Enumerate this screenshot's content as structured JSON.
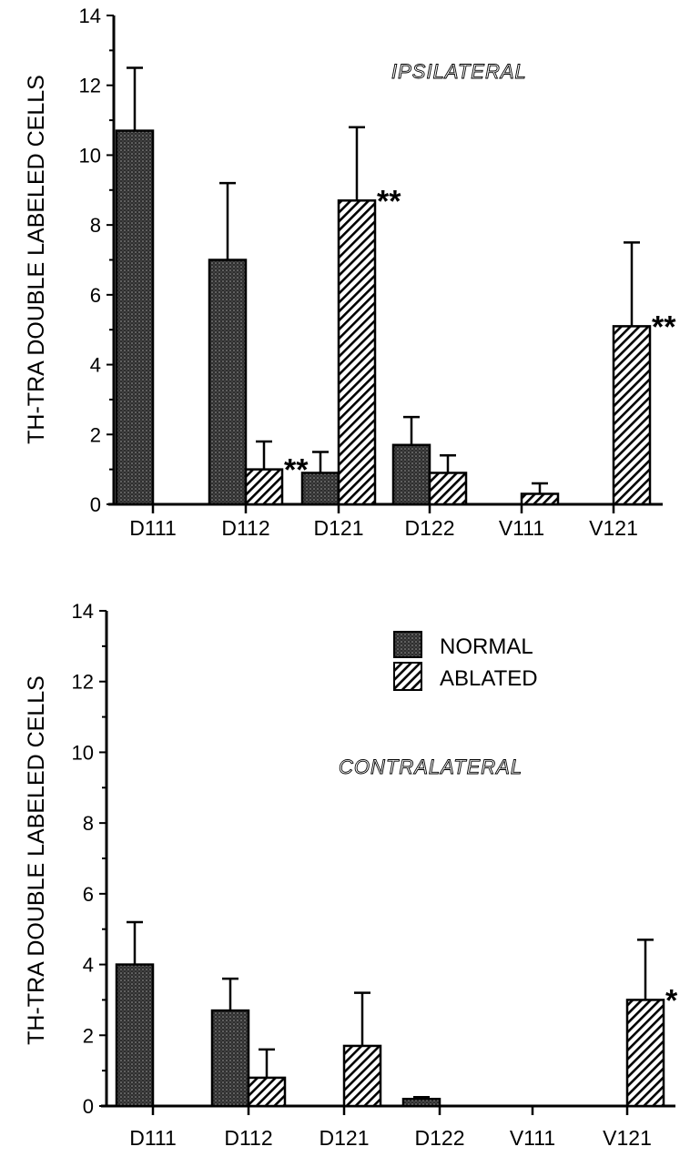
{
  "legend": {
    "normal": "NORMAL",
    "ablated": "ABLATED"
  },
  "colors": {
    "normal": "#3a3a3a",
    "ablated_hatch": "#000000",
    "background": "#ffffff"
  },
  "chart_data": [
    {
      "type": "bar",
      "title": "IPSILATERAL",
      "ylabel": "TH-TRA DOUBLE LABELED CELLS",
      "xlabel": "",
      "ylim": [
        0,
        14
      ],
      "yticks": [
        "0",
        "2",
        "4",
        "6",
        "8",
        "10",
        "12",
        "14"
      ],
      "categories": [
        "D111",
        "D112",
        "D121",
        "D122",
        "V111",
        "V121"
      ],
      "series": [
        {
          "name": "NORMAL",
          "values": [
            10.7,
            7.0,
            0.9,
            1.7,
            0,
            0
          ],
          "error": [
            12.5,
            9.2,
            1.5,
            2.5,
            null,
            null
          ]
        },
        {
          "name": "ABLATED",
          "values": [
            0,
            1.0,
            8.7,
            0.9,
            0.3,
            5.1
          ],
          "error": [
            null,
            1.8,
            10.8,
            1.4,
            0.6,
            7.5
          ]
        }
      ],
      "significance": [
        "",
        "**",
        "**",
        "",
        "",
        "**"
      ],
      "grid": false
    },
    {
      "type": "bar",
      "title": "CONTRALATERAL",
      "ylabel": "TH-TRA DOUBLE LABELED CELLS",
      "xlabel": "",
      "ylim": [
        0,
        14
      ],
      "yticks": [
        "0",
        "2",
        "4",
        "6",
        "8",
        "10",
        "12",
        "14"
      ],
      "categories": [
        "D111",
        "D112",
        "D121",
        "D122",
        "V111",
        "V121"
      ],
      "series": [
        {
          "name": "NORMAL",
          "values": [
            4.0,
            2.7,
            0,
            0.2,
            0,
            0
          ],
          "error": [
            5.2,
            3.6,
            null,
            0.25,
            null,
            null
          ]
        },
        {
          "name": "ABLATED",
          "values": [
            0,
            0.8,
            1.7,
            0,
            0,
            3.0
          ],
          "error": [
            null,
            1.6,
            3.2,
            null,
            null,
            4.7
          ]
        }
      ],
      "significance": [
        "",
        "",
        "",
        "",
        "",
        "*"
      ],
      "legend_position": "top-right",
      "grid": false
    }
  ]
}
